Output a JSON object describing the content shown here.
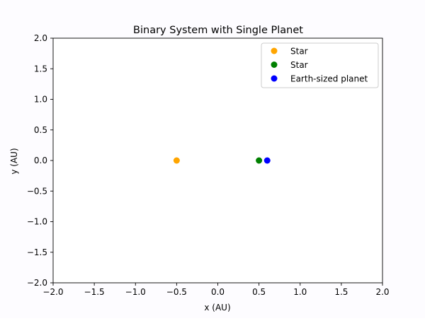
{
  "chart_data": {
    "type": "scatter",
    "title": "Binary System with Single Planet",
    "xlabel": "x (AU)",
    "ylabel": "y (AU)",
    "xlim": [
      -2.0,
      2.0
    ],
    "ylim": [
      -2.0,
      2.0
    ],
    "xticks": [
      -2.0,
      -1.5,
      -1.0,
      -0.5,
      0.0,
      0.5,
      1.0,
      1.5,
      2.0
    ],
    "yticks": [
      -2.0,
      -1.5,
      -1.0,
      -0.5,
      0.0,
      0.5,
      1.0,
      1.5,
      2.0
    ],
    "xtick_labels": [
      "−2.0",
      "−1.5",
      "−1.0",
      "−0.5",
      "0.0",
      "0.5",
      "1.0",
      "1.5",
      "2.0"
    ],
    "ytick_labels": [
      "−2.0",
      "−1.5",
      "−1.0",
      "−0.5",
      "0.0",
      "0.5",
      "1.0",
      "1.5",
      "2.0"
    ],
    "grid": false,
    "legend_position": "top-right",
    "series": [
      {
        "name": "Star",
        "color": "#ffa500",
        "x": [
          -0.5
        ],
        "y": [
          0.0
        ]
      },
      {
        "name": "Star",
        "color": "#008000",
        "x": [
          0.5
        ],
        "y": [
          0.0
        ]
      },
      {
        "name": "Earth-sized planet",
        "color": "#0000ff",
        "x": [
          0.6
        ],
        "y": [
          0.0
        ]
      }
    ]
  }
}
